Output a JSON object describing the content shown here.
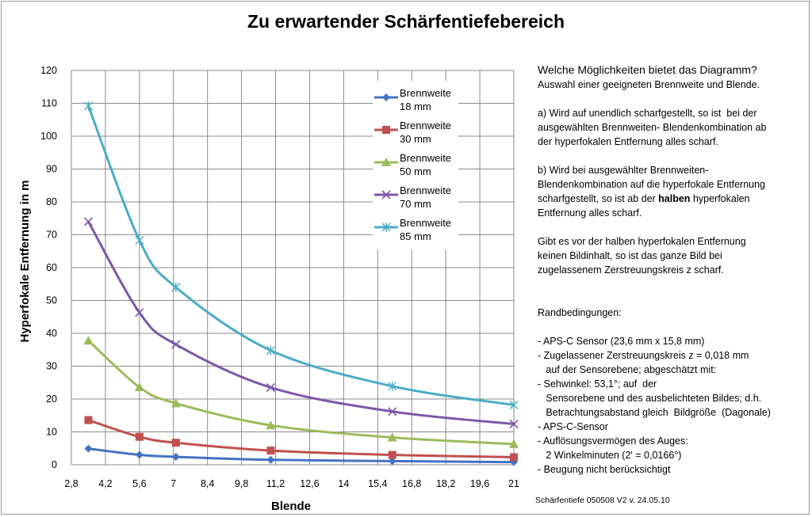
{
  "chart_data": {
    "type": "line",
    "title": "Zu erwartender Schärfentiefebereich",
    "xlabel": "Blende",
    "ylabel": "Hyperfokale Entfernung in m",
    "xlim": [
      2.8,
      21
    ],
    "ylim": [
      0,
      120
    ],
    "xticks": [
      "2,8",
      "4,2",
      "5,6",
      "7",
      "8,4",
      "9,8",
      "11,2",
      "12,6",
      "14",
      "15,4",
      "16,8",
      "18,2",
      "19,6",
      "21"
    ],
    "yticks": [
      "0",
      "10",
      "20",
      "30",
      "40",
      "50",
      "60",
      "70",
      "80",
      "90",
      "100",
      "110",
      "120"
    ],
    "grid": true,
    "legend_position": "top-right",
    "series": [
      {
        "name": [
          "Brennweite",
          "18 mm"
        ],
        "color": "#4472C4",
        "marker": "diamond",
        "x": [
          3.5,
          5.6,
          7.1,
          11,
          16,
          21
        ],
        "y": [
          4.9,
          3.0,
          2.4,
          1.5,
          1.1,
          0.8
        ]
      },
      {
        "name": [
          "Brennweite",
          "30  mm"
        ],
        "color": "#C0504D",
        "marker": "square",
        "x": [
          3.5,
          5.6,
          7.1,
          11,
          16,
          21
        ],
        "y": [
          13.6,
          8.5,
          6.7,
          4.3,
          3.0,
          2.3
        ]
      },
      {
        "name": [
          "Brennweite",
          "50 mm"
        ],
        "color": "#9BBB59",
        "marker": "triangle",
        "x": [
          3.5,
          5.6,
          7.1,
          11,
          16,
          21
        ],
        "y": [
          37.8,
          23.6,
          18.7,
          12.0,
          8.3,
          6.3
        ]
      },
      {
        "name": [
          "Brennweite",
          "70 mm"
        ],
        "color": "#7E57A8",
        "marker": "x",
        "x": [
          3.5,
          5.6,
          7.1,
          11,
          16,
          21
        ],
        "y": [
          74.0,
          46.3,
          36.6,
          23.5,
          16.2,
          12.4
        ]
      },
      {
        "name": [
          "Brennweite",
          "85 mm"
        ],
        "color": "#4BACC6",
        "marker": "star",
        "x": [
          3.5,
          5.6,
          7.1,
          11,
          16,
          21
        ],
        "y": [
          109.2,
          68.3,
          54.0,
          34.8,
          23.9,
          18.2
        ]
      }
    ]
  },
  "side_text": {
    "heading": "Welche Möglichkeiten bietet das Diagramm?",
    "intro": "Auswahl einer geeigneten Brennweite und Blende.",
    "a_lines": [
      "a) Wird auf unendlich scharfgestellt, so ist  bei der",
      "ausgewählten Brennweiten- Blendenkombination ab",
      "der hyperfokalen Entfernung alles scharf."
    ],
    "b_lines": [
      "b) Wird bei ausgewählter Brennweiten-",
      "Blendenkombination auf die hyperfokale Entfernung",
      "scharfgestellt, so ist ab der "
    ],
    "b_bold": "halben",
    "b_rest": " hyperfokalen",
    "b_last": "Entfernung alles scharf.",
    "c_lines": [
      "Gibt es vor der halben hyperfokalen Entfernung",
      "keinen Bildinhalt, so ist das ganze Bild bei",
      "zugelassenem Zerstreuungskreis z scharf."
    ],
    "rand_heading": "Randbedingungen:",
    "rand_lines": [
      "- APS-C Sensor (23,6 mm x 15,8 mm)",
      "- Zugelassener Zerstreuungskreis z = 0,018 mm",
      "   auf der Sensorebene; abgeschätzt mit:",
      "- Sehwinkel: 53,1°; auf  der",
      "   Sensorebene und des ausbelichteten Bildes; d.h.",
      "   Betrachtungsabstand gleich  Bildgröße  (Dagonale)",
      "- APS-C-Sensor",
      "- Auflösungsvermögen des Auges:",
      "   2 Winkelminuten (2' = 0,0166°)",
      "- Beugung nicht berücksichtigt"
    ]
  },
  "footnote": "Schärfentiefe 050508 V2 v. 24.05.10"
}
